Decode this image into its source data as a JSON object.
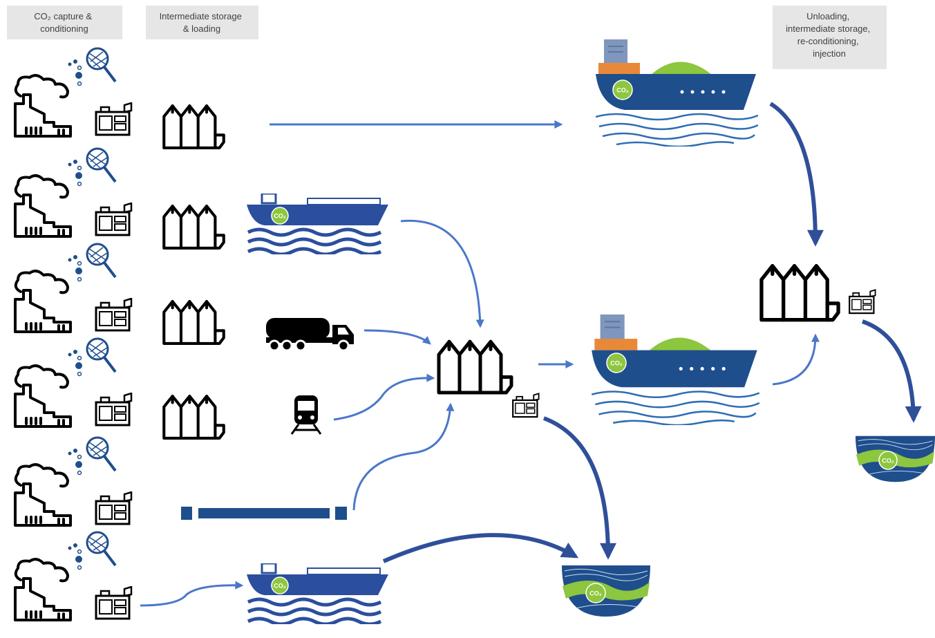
{
  "header_boxes": [
    {
      "lines": [
        "CO₂ capture &",
        "conditioning"
      ]
    },
    {
      "lines": [
        "Intermediate storage",
        "& loading"
      ]
    },
    {
      "lines": [
        "Unloading,",
        "intermediate storage,",
        "re-conditioning,",
        "injection"
      ]
    }
  ],
  "badge_label": "CO₂"
}
